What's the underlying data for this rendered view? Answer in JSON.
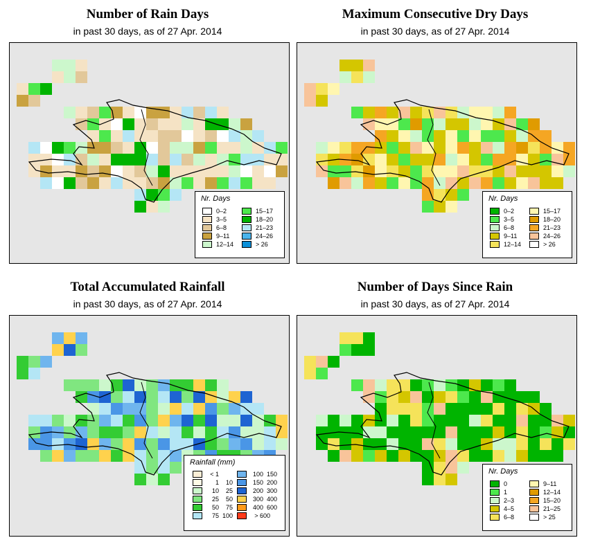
{
  "panels": [
    {
      "title": "Number of Rain Days",
      "subtitle": "in past 30 days, as of  27 Apr. 2014",
      "legend": {
        "title": "Nr. Days",
        "items": [
          {
            "label": "0–2",
            "color": "#ffffff"
          },
          {
            "label": "3–5",
            "color": "#f5e3c5"
          },
          {
            "label": "6–8",
            "color": "#e2c89a"
          },
          {
            "label": "9–11",
            "color": "#c9a240"
          },
          {
            "label": "12–14",
            "color": "#ccf7cc"
          },
          {
            "label": "15–17",
            "color": "#4de84d"
          },
          {
            "label": "18–20",
            "color": "#00b400"
          },
          {
            "label": "21–23",
            "color": "#b4e6f5"
          },
          {
            "label": "24–26",
            "color": "#4ab4ec"
          },
          {
            "label": "> 26",
            "color": "#0a8fd8"
          }
        ]
      }
    },
    {
      "title": "Maximum Consecutive Dry Days",
      "subtitle": "in past 30 days, as of  27 Apr. 2014",
      "legend": {
        "title": "Nr. Days",
        "items": [
          {
            "label": "0–2",
            "color": "#00b400"
          },
          {
            "label": "3–5",
            "color": "#4de84d"
          },
          {
            "label": "6–8",
            "color": "#ccf7cc"
          },
          {
            "label": "9–11",
            "color": "#d4c600"
          },
          {
            "label": "12–14",
            "color": "#f5e35a"
          },
          {
            "label": "15–17",
            "color": "#fff6b0"
          },
          {
            "label": "18–20",
            "color": "#e09b00"
          },
          {
            "label": "21–23",
            "color": "#f5a623"
          },
          {
            "label": "24–26",
            "color": "#f8c49a"
          },
          {
            "label": "> 26",
            "color": "#ffffff"
          }
        ]
      }
    },
    {
      "title": "Total Accumulated Rainfall",
      "subtitle": "in past 30 days, as of  27 Apr. 2014",
      "legend": {
        "title": "Rainfall (mm)",
        "items": [
          {
            "label_a": "< 1",
            "label_b": "",
            "color": "#fbeed6"
          },
          {
            "label_a": "1",
            "label_b": "10",
            "color": "#fffbe6"
          },
          {
            "label_a": "10",
            "label_b": "25",
            "color": "#ccf7cc"
          },
          {
            "label_a": "25",
            "label_b": "50",
            "color": "#80e680"
          },
          {
            "label_a": "50",
            "label_b": "75",
            "color": "#33cc33"
          },
          {
            "label_a": "75",
            "label_b": "100",
            "color": "#b4e6f5"
          },
          {
            "label_a": "100",
            "label_b": "150",
            "color": "#6fb5ee"
          },
          {
            "label_a": "150",
            "label_b": "200",
            "color": "#4a96e6"
          },
          {
            "label_a": "200",
            "label_b": "300",
            "color": "#1e64d2"
          },
          {
            "label_a": "300",
            "label_b": "400",
            "color": "#ffd24d"
          },
          {
            "label_a": "400",
            "label_b": "600",
            "color": "#ff9a1a"
          },
          {
            "label_a": "> 600",
            "label_b": "",
            "color": "#ff3a1a"
          }
        ]
      }
    },
    {
      "title": "Number of Days Since Rain",
      "subtitle": "in past 30 days, as of  27 Apr. 2014",
      "legend": {
        "title": "Nr. Days",
        "items": [
          {
            "label": "0",
            "color": "#00b400"
          },
          {
            "label": "1",
            "color": "#4de84d"
          },
          {
            "label": "2–3",
            "color": "#ccf7cc"
          },
          {
            "label": "4–5",
            "color": "#d4c600"
          },
          {
            "label": "6–8",
            "color": "#f5e35a"
          },
          {
            "label": "9–11",
            "color": "#fff6b0"
          },
          {
            "label": "12–14",
            "color": "#e09b00"
          },
          {
            "label": "15–20",
            "color": "#f5a623"
          },
          {
            "label": "21–25",
            "color": "#f8c49a"
          },
          {
            "label": "> 25",
            "color": "#ffffff"
          }
        ]
      }
    }
  ]
}
